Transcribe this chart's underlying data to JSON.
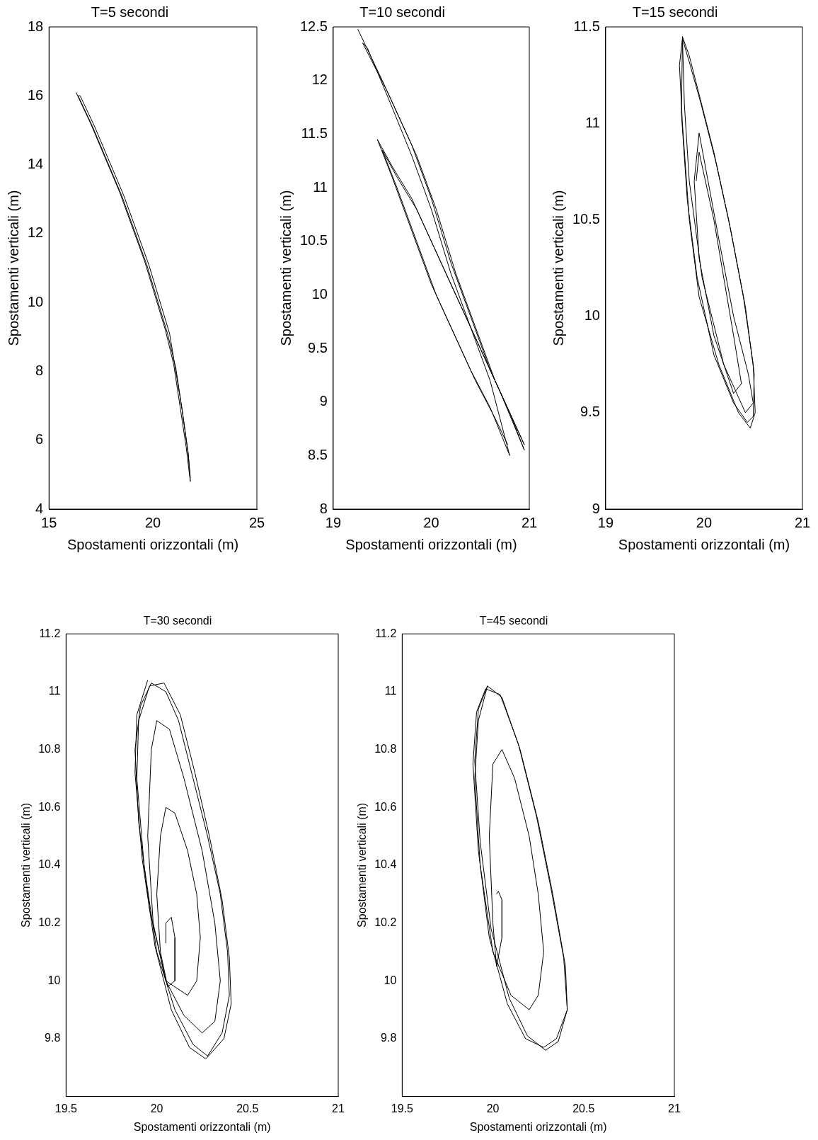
{
  "chart_data": [
    {
      "type": "line",
      "title": "T=5 secondi",
      "xlabel": "Spostamenti orizzontali (m)",
      "ylabel": "Spostamenti verticali (m)",
      "xlim": [
        15,
        25
      ],
      "ylim": [
        4,
        18
      ],
      "xticks": [
        15,
        20,
        25
      ],
      "yticks": [
        4,
        6,
        8,
        10,
        12,
        14,
        16,
        18
      ],
      "grid": false,
      "marker": "none",
      "line_style": "solid",
      "series": [
        {
          "color": "#000000",
          "x": [
            16.3,
            17.0,
            17.7,
            18.4,
            19.0,
            19.6,
            20.1,
            20.6,
            21.0,
            21.3,
            21.6,
            21.8,
            21.7,
            21.4,
            21.1,
            20.8,
            20.3,
            19.8,
            19.2,
            18.6,
            17.9,
            17.2,
            16.5,
            16.4,
            17.1,
            17.8,
            18.5,
            19.1,
            19.7,
            20.2,
            20.7,
            21.1,
            21.4,
            21.7,
            21.8
          ],
          "values": [
            16.1,
            15.2,
            14.2,
            13.2,
            12.2,
            11.2,
            10.2,
            9.2,
            8.2,
            7.0,
            5.8,
            4.8,
            5.6,
            6.9,
            8.0,
            9.1,
            10.1,
            11.1,
            12.1,
            13.1,
            14.1,
            15.1,
            16.0,
            16.0,
            15.1,
            14.1,
            13.1,
            12.1,
            11.1,
            10.1,
            9.1,
            8.1,
            6.9,
            5.6,
            4.9
          ]
        }
      ]
    },
    {
      "type": "line",
      "title": "T=10 secondi",
      "xlabel": "Spostamenti orizzontali (m)",
      "ylabel": "Spostamenti verticali (m)",
      "xlim": [
        19,
        21
      ],
      "ylim": [
        8,
        12.5
      ],
      "xticks": [
        19,
        20,
        21
      ],
      "yticks": [
        8,
        8.5,
        9,
        9.5,
        10,
        10.5,
        11,
        11.5,
        12,
        12.5
      ],
      "grid": false,
      "marker": "none",
      "line_style": "solid",
      "series": [
        {
          "color": "#000000",
          "x": [
            19.25,
            19.5,
            19.8,
            20.0,
            20.2,
            20.4,
            20.6,
            20.8,
            20.95,
            20.7,
            20.4,
            20.2,
            20.0,
            19.8,
            19.6,
            19.45,
            19.6,
            19.8,
            20.0,
            20.2,
            20.4,
            20.6,
            20.8,
            20.6,
            20.4,
            20.2,
            20.0,
            19.8,
            19.6,
            19.35,
            19.3,
            19.55,
            19.85,
            20.05,
            20.25,
            20.45,
            20.65,
            20.85,
            20.95,
            20.75,
            20.45,
            20.25,
            20.05,
            19.85,
            19.65,
            19.5,
            19.65,
            19.85,
            20.05,
            20.25,
            20.45,
            20.65,
            20.78
          ],
          "values": [
            12.48,
            12.0,
            11.4,
            10.9,
            10.3,
            9.8,
            9.3,
            8.9,
            8.55,
            9.1,
            9.7,
            10.1,
            10.5,
            10.9,
            11.2,
            11.45,
            11.1,
            10.6,
            10.1,
            9.7,
            9.3,
            8.95,
            8.5,
            9.2,
            9.7,
            10.2,
            10.8,
            11.3,
            11.75,
            12.3,
            12.35,
            11.9,
            11.3,
            10.8,
            10.2,
            9.7,
            9.2,
            8.8,
            8.6,
            9.0,
            9.6,
            10.0,
            10.4,
            10.8,
            11.1,
            11.35,
            11.0,
            10.5,
            10.0,
            9.6,
            9.2,
            8.85,
            8.6
          ]
        }
      ]
    },
    {
      "type": "line",
      "title": "T=15 secondi",
      "xlabel": "Spostamenti orizzontali (m)",
      "ylabel": "Spostamenti verticali (m)",
      "xlim": [
        19,
        21
      ],
      "ylim": [
        9,
        11.5
      ],
      "xticks": [
        19,
        20,
        21
      ],
      "yticks": [
        9,
        9.5,
        10,
        10.5,
        11,
        11.5
      ],
      "grid": false,
      "marker": "none",
      "line_style": "solid",
      "series": [
        {
          "color": "#000000",
          "x": [
            19.92,
            19.95,
            20.1,
            20.2,
            20.3,
            20.38,
            20.3,
            20.1,
            19.95,
            19.9,
            19.95,
            20.15,
            20.3,
            20.45,
            20.5,
            20.42,
            20.2,
            19.98,
            19.85,
            19.8,
            19.78,
            19.85,
            19.95,
            20.1,
            20.25,
            20.4,
            20.5,
            20.52,
            20.47,
            20.35,
            20.15,
            19.95,
            19.85,
            19.78,
            19.75,
            19.78,
            19.86,
            19.97,
            20.12,
            20.27,
            20.42,
            20.51,
            20.5,
            20.44,
            20.3,
            20.1,
            19.93,
            19.83,
            19.77,
            19.78
          ],
          "values": [
            10.7,
            10.85,
            10.5,
            10.2,
            9.9,
            9.65,
            9.6,
            9.9,
            10.3,
            10.7,
            10.95,
            10.4,
            10.0,
            9.7,
            9.55,
            9.5,
            9.75,
            10.2,
            10.7,
            11.1,
            11.45,
            11.35,
            11.15,
            10.85,
            10.5,
            10.1,
            9.75,
            9.5,
            9.42,
            9.5,
            9.75,
            10.1,
            10.5,
            11.0,
            11.3,
            11.44,
            11.3,
            11.1,
            10.8,
            10.45,
            10.05,
            9.7,
            9.48,
            9.45,
            9.55,
            9.8,
            10.2,
            10.6,
            11.05,
            11.42
          ]
        }
      ]
    },
    {
      "type": "line",
      "title": "T=30 secondi",
      "xlabel": "Spostamenti orizzontali (m)",
      "ylabel": "Spostamenti verticali (m)",
      "xlim": [
        19.5,
        21
      ],
      "ylim": [
        9.6,
        11.2
      ],
      "xticks": [
        19.5,
        20,
        20.5,
        21
      ],
      "yticks": [
        9.8,
        10,
        10.2,
        10.4,
        10.6,
        10.8,
        11,
        11.2
      ],
      "grid": false,
      "marker": "none",
      "line_style": "solid",
      "series": [
        {
          "color": "#000000",
          "x": [
            20.05,
            20.05,
            20.08,
            20.1,
            20.1,
            20.06,
            20.02,
            20.0,
            20.02,
            20.05,
            20.1,
            20.17,
            20.22,
            20.24,
            20.22,
            20.17,
            20.05,
            19.98,
            19.95,
            19.97,
            20.0,
            20.07,
            20.15,
            20.25,
            20.32,
            20.35,
            20.32,
            20.25,
            20.15,
            20.05,
            19.96,
            19.9,
            19.88,
            19.91,
            19.97,
            20.05,
            20.12,
            20.2,
            20.28,
            20.35,
            20.39,
            20.4,
            20.36,
            20.28,
            20.2,
            20.1,
            20.0,
            19.93,
            19.89,
            19.9,
            19.96,
            20.04,
            20.13,
            20.21,
            20.29,
            20.36,
            20.4,
            20.41,
            20.37,
            20.27,
            20.18,
            20.08,
            19.99,
            19.92,
            19.88,
            19.89,
            19.95
          ],
          "values": [
            10.13,
            10.2,
            10.22,
            10.15,
            10.0,
            9.98,
            10.1,
            10.3,
            10.5,
            10.6,
            10.58,
            10.45,
            10.3,
            10.15,
            10.0,
            9.95,
            10.0,
            10.2,
            10.5,
            10.8,
            10.9,
            10.87,
            10.7,
            10.45,
            10.2,
            10.0,
            9.86,
            9.82,
            9.88,
            10.0,
            10.25,
            10.55,
            10.8,
            10.95,
            11.03,
            11.0,
            10.9,
            10.7,
            10.5,
            10.3,
            10.1,
            9.95,
            9.82,
            9.74,
            9.78,
            9.9,
            10.1,
            10.4,
            10.7,
            10.9,
            11.02,
            11.03,
            10.92,
            10.72,
            10.5,
            10.28,
            10.08,
            9.92,
            9.8,
            9.73,
            9.77,
            9.9,
            10.12,
            10.42,
            10.72,
            10.92,
            11.04
          ]
        }
      ]
    },
    {
      "type": "line",
      "title": "T=45 secondi",
      "xlabel": "Spostamenti orizzontali (m)",
      "ylabel": "Spostamenti verticali (m)",
      "xlim": [
        19.5,
        21
      ],
      "ylim": [
        9.6,
        11.2
      ],
      "xticks": [
        19.5,
        20,
        20.5,
        21
      ],
      "yticks": [
        9.8,
        10,
        10.2,
        10.4,
        10.6,
        10.8,
        11,
        11.2
      ],
      "grid": false,
      "marker": "none",
      "line_style": "solid",
      "series": [
        {
          "color": "#000000",
          "x": [
            20.02,
            20.03,
            20.05,
            20.05,
            20.02,
            20.0,
            19.98,
            20.0,
            20.05,
            20.12,
            20.2,
            20.25,
            20.28,
            20.25,
            20.2,
            20.1,
            20.0,
            19.93,
            19.9,
            19.92,
            19.97,
            20.05,
            20.15,
            20.25,
            20.33,
            20.4,
            20.41,
            20.35,
            20.28,
            20.18,
            20.08,
            19.98,
            19.92,
            19.89,
            19.91,
            19.96,
            20.04,
            20.14,
            20.24,
            20.32,
            20.39,
            20.41,
            20.36,
            20.29,
            20.19,
            20.09,
            19.99,
            19.93,
            19.9,
            19.92,
            19.97
          ],
          "values": [
            10.3,
            10.31,
            10.28,
            10.15,
            10.05,
            10.2,
            10.5,
            10.75,
            10.8,
            10.7,
            10.5,
            10.3,
            10.1,
            9.95,
            9.9,
            9.95,
            10.1,
            10.4,
            10.7,
            10.9,
            11.02,
            10.98,
            10.8,
            10.55,
            10.3,
            10.05,
            9.9,
            9.8,
            9.77,
            9.8,
            9.92,
            10.15,
            10.45,
            10.75,
            10.93,
            11.01,
            10.99,
            10.82,
            10.57,
            10.32,
            10.08,
            9.9,
            9.79,
            9.76,
            9.81,
            9.94,
            10.18,
            10.48,
            10.76,
            10.94,
            11.02
          ]
        }
      ]
    }
  ]
}
